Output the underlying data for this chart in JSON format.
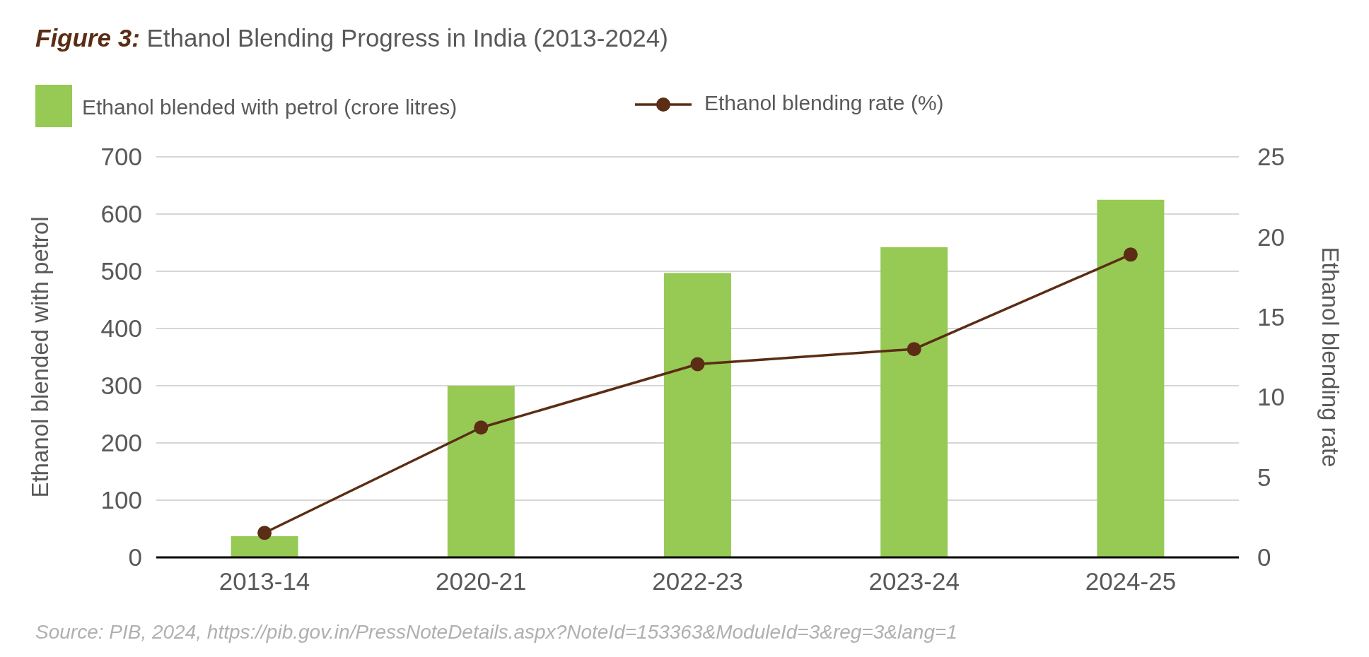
{
  "chart_data": {
    "type": "bar",
    "title": "Figure 3: Ethanol Blending Progress in India (2013-2024)",
    "ylabel": "Ethanol blended with petrol",
    "y2label": "Ethanol blending rate",
    "categories": [
      "2013-14",
      "2020-21",
      "2022-23",
      "2023-24",
      "2024-25"
    ],
    "series": [
      {
        "name": "Ethanol blended with petrol (crore litres)",
        "color": "#97c955",
        "values": [
          37,
          300,
          497,
          542,
          625
        ]
      },
      {
        "name": "Ethanol blending rate (%)",
        "type": "line",
        "axis": "y2",
        "color": "#5a2d14",
        "values": [
          1.53,
          8.1,
          12.06,
          13,
          18.9
        ]
      }
    ],
    "ylim": [
      0,
      700
    ],
    "yticks": [
      0,
      100,
      200,
      300,
      400,
      500,
      600,
      700
    ],
    "y2lim": [
      0,
      25
    ],
    "y2ticks": [
      0,
      5,
      10,
      15,
      20,
      25
    ],
    "grid": "y",
    "legend": "top",
    "marker": "circle",
    "line_style": "solid",
    "annotations": [
      "Source: PIB, 2024, https://pib.gov.in/PressNoteDetails.aspx?NoteId=153363&ModuleId=3&reg=3&lang=1"
    ]
  }
}
